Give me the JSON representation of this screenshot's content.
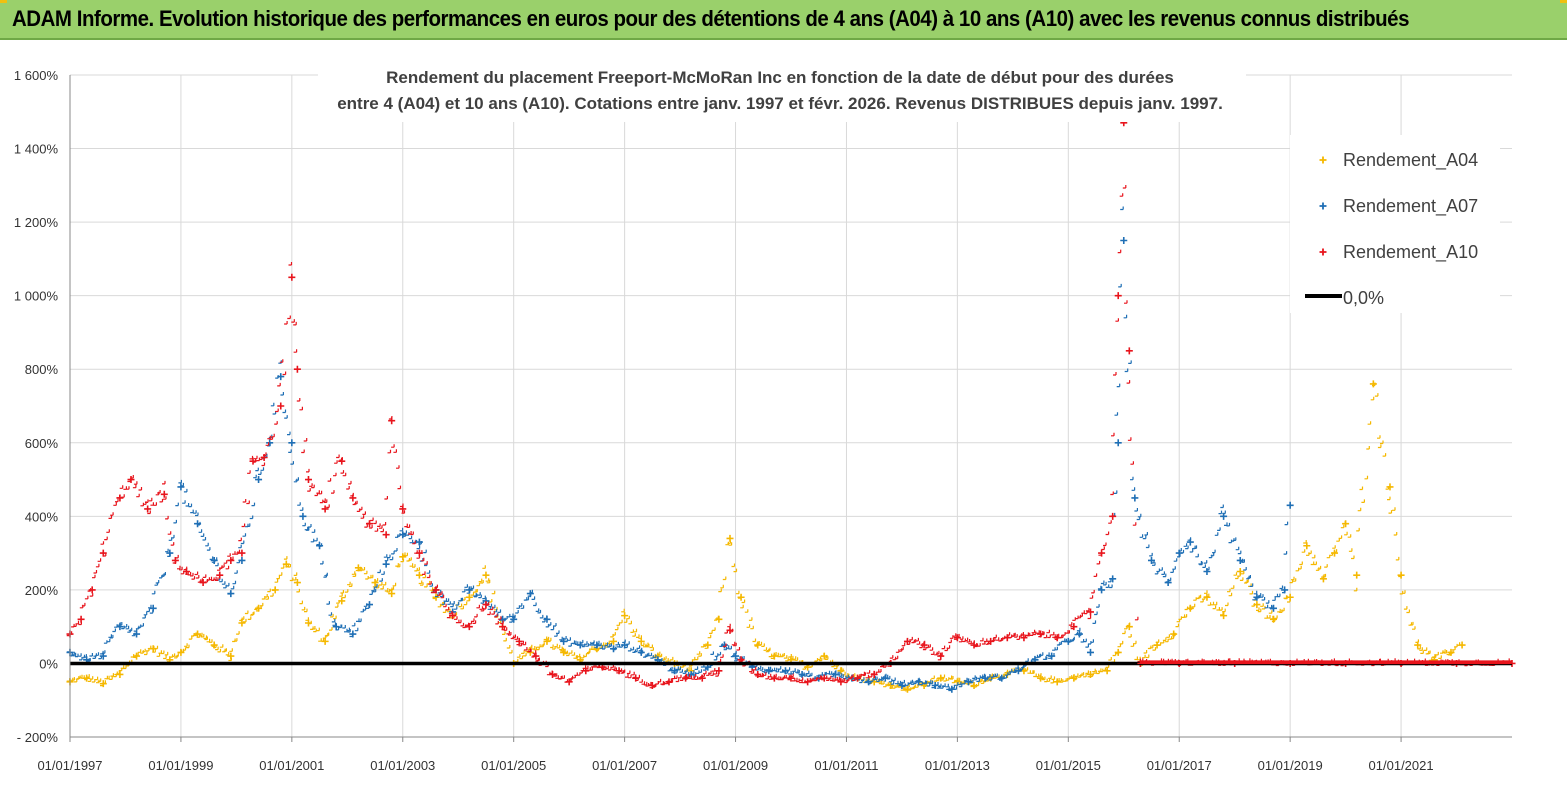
{
  "header": {
    "title": "ADAM Informe. Evolution historique des performances en euros pour des détentions de 4 ans (A04) à 10 ans (A10) avec les revenus connus distribués"
  },
  "colors": {
    "banner": "#9ad06b",
    "a04": "#f5b800",
    "a07": "#1f6fb5",
    "a10": "#e8141c",
    "zero_line": "#000000",
    "grid": "#d9d9d9"
  },
  "chart_data": {
    "type": "scatter",
    "title": [
      "Rendement du placement Freeport-McMoRan Inc en fonction de la date de début pour des durées",
      "entre 4 (A04) et 10 ans (A10).  Cotations entre janv. 1997 et févr. 2026. Revenus DISTRIBUES depuis janv. 1997."
    ],
    "xlabel": "",
    "ylabel": "",
    "x_range": [
      1997.0,
      2023.0
    ],
    "ylim": [
      -200,
      1600
    ],
    "y_ticks": [
      -200,
      0,
      200,
      400,
      600,
      800,
      1000,
      1200,
      1400,
      1600
    ],
    "y_tick_labels": [
      "- 200%",
      "0%",
      "200%",
      "400%",
      "600%",
      "800%",
      "1 000%",
      "1 200%",
      "1 400%",
      "1 600%"
    ],
    "x_ticks": [
      1997,
      1999,
      2001,
      2003,
      2005,
      2007,
      2009,
      2011,
      2013,
      2015,
      2017,
      2019,
      2021
    ],
    "x_tick_labels": [
      "01/01/1997",
      "01/01/1999",
      "01/01/2001",
      "01/01/2003",
      "01/01/2005",
      "01/01/2007",
      "01/01/2009",
      "01/01/2011",
      "01/01/2013",
      "01/01/2015",
      "01/01/2017",
      "01/01/2019",
      "01/01/2021"
    ],
    "legend_position": "top-right",
    "series": [
      {
        "name": "Rendement_A04",
        "marker": "+",
        "x": [
          1997.0,
          1997.3,
          1997.6,
          1997.9,
          1998.2,
          1998.5,
          1998.8,
          1999.0,
          1999.3,
          1999.6,
          1999.9,
          2000.1,
          2000.4,
          2000.7,
          2000.9,
          2001.1,
          2001.3,
          2001.6,
          2001.9,
          2002.2,
          2002.5,
          2002.8,
          2003.0,
          2003.3,
          2003.6,
          2003.9,
          2004.2,
          2004.5,
          2004.8,
          2005.0,
          2005.3,
          2005.6,
          2005.9,
          2006.2,
          2006.5,
          2006.8,
          2007.0,
          2007.3,
          2007.6,
          2007.9,
          2008.2,
          2008.5,
          2008.7,
          2008.9,
          2009.1,
          2009.4,
          2009.7,
          2010.0,
          2010.3,
          2010.6,
          2010.9,
          2011.2,
          2011.5,
          2011.8,
          2012.1,
          2012.4,
          2012.7,
          2013.0,
          2013.3,
          2013.6,
          2013.9,
          2014.2,
          2014.5,
          2014.8,
          2015.1,
          2015.4,
          2015.7,
          2015.9,
          2016.1,
          2016.3,
          2016.6,
          2016.9,
          2017.2,
          2017.5,
          2017.8,
          2018.1,
          2018.4,
          2018.7,
          2019.0,
          2019.3,
          2019.6,
          2019.8,
          2020.0,
          2020.2,
          2020.5,
          2020.8,
          2021.0,
          2021.3,
          2021.6,
          2021.9,
          2022.1
        ],
        "y": [
          -50,
          -40,
          -55,
          -30,
          20,
          40,
          10,
          30,
          80,
          50,
          20,
          110,
          150,
          200,
          270,
          220,
          110,
          60,
          170,
          260,
          220,
          190,
          290,
          240,
          180,
          130,
          180,
          240,
          100,
          0,
          30,
          60,
          30,
          10,
          40,
          60,
          130,
          60,
          20,
          0,
          -20,
          50,
          120,
          340,
          180,
          50,
          20,
          10,
          -10,
          20,
          -20,
          -40,
          -50,
          -60,
          -70,
          -60,
          -40,
          -50,
          -60,
          -40,
          -30,
          -20,
          -40,
          -50,
          -40,
          -30,
          -20,
          30,
          100,
          0,
          50,
          80,
          150,
          180,
          130,
          250,
          160,
          120,
          180,
          320,
          230,
          300,
          380,
          240,
          760,
          480,
          240,
          50,
          10,
          30,
          50
        ]
      },
      {
        "name": "Rendement_A07",
        "marker": "+",
        "x": [
          1997.0,
          1997.3,
          1997.6,
          1997.9,
          1998.2,
          1998.5,
          1998.8,
          1999.0,
          1999.3,
          1999.6,
          1999.9,
          2000.1,
          2000.4,
          2000.6,
          2000.8,
          2001.0,
          2001.2,
          2001.5,
          2001.8,
          2002.1,
          2002.4,
          2002.7,
          2003.0,
          2003.3,
          2003.6,
          2003.9,
          2004.2,
          2004.5,
          2004.8,
          2005.0,
          2005.3,
          2005.6,
          2005.9,
          2006.2,
          2006.5,
          2006.8,
          2007.0,
          2007.3,
          2007.6,
          2007.9,
          2008.2,
          2008.5,
          2008.8,
          2009.0,
          2009.3,
          2009.6,
          2009.9,
          2010.2,
          2010.5,
          2010.8,
          2011.1,
          2011.4,
          2011.7,
          2012.0,
          2012.3,
          2012.6,
          2012.9,
          2013.2,
          2013.5,
          2013.8,
          2014.1,
          2014.4,
          2014.7,
          2015.0,
          2015.2,
          2015.4,
          2015.6,
          2015.8,
          2015.9,
          2016.0,
          2016.2,
          2016.5,
          2016.8,
          2017.0,
          2017.2,
          2017.5,
          2017.8,
          2018.1,
          2018.4,
          2018.7,
          2018.9,
          2019.0
        ],
        "y": [
          30,
          10,
          20,
          100,
          80,
          150,
          300,
          480,
          380,
          280,
          190,
          280,
          500,
          600,
          780,
          600,
          400,
          320,
          100,
          80,
          160,
          270,
          350,
          330,
          200,
          140,
          200,
          170,
          120,
          120,
          190,
          120,
          60,
          50,
          50,
          40,
          50,
          30,
          10,
          -20,
          -30,
          -10,
          50,
          20,
          -10,
          -20,
          -20,
          -30,
          -40,
          -30,
          -40,
          -50,
          -40,
          -60,
          -50,
          -60,
          -70,
          -50,
          -40,
          -40,
          -20,
          10,
          20,
          60,
          80,
          30,
          200,
          230,
          600,
          1150,
          450,
          280,
          220,
          300,
          330,
          250,
          400,
          280,
          180,
          150,
          200,
          430
        ]
      },
      {
        "name": "Rendement_A10",
        "marker": "+",
        "x": [
          1997.0,
          1997.2,
          1997.4,
          1997.6,
          1997.9,
          1998.1,
          1998.4,
          1998.7,
          1998.9,
          1999.1,
          1999.4,
          1999.7,
          1999.9,
          2000.1,
          2000.3,
          2000.5,
          2000.8,
          2001.0,
          2001.1,
          2001.3,
          2001.6,
          2001.9,
          2002.1,
          2002.4,
          2002.7,
          2002.8,
          2003.0,
          2003.3,
          2003.6,
          2003.9,
          2004.2,
          2004.5,
          2004.8,
          2005.1,
          2005.4,
          2005.7,
          2006.0,
          2006.3,
          2006.6,
          2006.9,
          2007.2,
          2007.5,
          2007.8,
          2008.1,
          2008.4,
          2008.7,
          2008.9,
          2009.1,
          2009.4,
          2009.7,
          2010.0,
          2010.3,
          2010.6,
          2010.9,
          2011.2,
          2011.5,
          2011.8,
          2012.1,
          2012.4,
          2012.7,
          2013.0,
          2013.3,
          2013.6,
          2013.9,
          2014.2,
          2014.5,
          2014.8,
          2015.1,
          2015.4,
          2015.6,
          2015.8,
          2015.9,
          2016.0,
          2016.1,
          2016.3,
          2017.0,
          2018.0,
          2019.0,
          2020.0,
          2021.0,
          2022.0,
          2023.0
        ],
        "y": [
          80,
          120,
          200,
          300,
          450,
          500,
          420,
          460,
          280,
          250,
          220,
          240,
          280,
          300,
          550,
          560,
          700,
          1050,
          800,
          500,
          420,
          550,
          450,
          380,
          350,
          660,
          420,
          300,
          200,
          130,
          100,
          160,
          100,
          60,
          20,
          -30,
          -50,
          -20,
          -10,
          -20,
          -40,
          -60,
          -50,
          -40,
          -40,
          -20,
          90,
          10,
          -30,
          -40,
          -40,
          -50,
          -40,
          -50,
          -40,
          -30,
          0,
          60,
          50,
          20,
          70,
          50,
          60,
          70,
          70,
          80,
          70,
          100,
          140,
          300,
          400,
          1000,
          1470,
          850,
          0,
          0,
          0,
          0,
          0,
          0,
          0,
          0
        ]
      },
      {
        "name": "0,0%",
        "marker": "line",
        "x": [
          1997.0,
          2023.0
        ],
        "y": [
          0,
          0
        ]
      }
    ]
  }
}
